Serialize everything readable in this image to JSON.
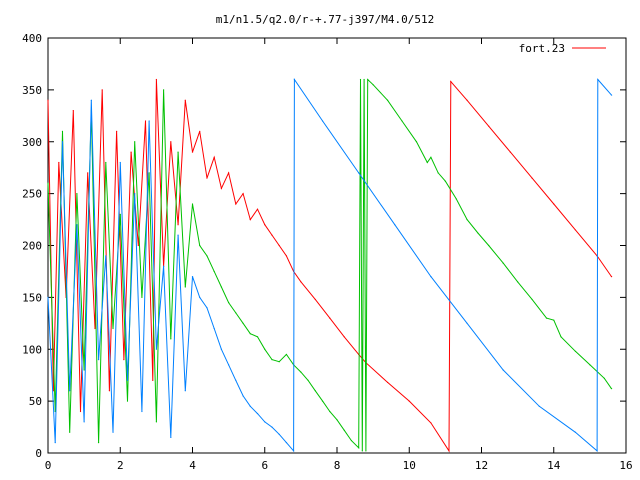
{
  "chart_data": {
    "type": "line",
    "title": "m1/n1.5/q2.0/r-+.77-j397/M4.0/512",
    "xlabel": "",
    "ylabel": "",
    "xlim": [
      0,
      16
    ],
    "ylim": [
      0,
      400
    ],
    "xticks": [
      0,
      2,
      4,
      6,
      8,
      10,
      12,
      14,
      16
    ],
    "yticks": [
      0,
      50,
      100,
      150,
      200,
      250,
      300,
      350,
      400
    ],
    "xtick_labels": [
      "0",
      "2",
      "4",
      "6",
      "8",
      "10",
      "12",
      "14",
      "16"
    ],
    "ytick_labels": [
      "0",
      "50",
      "100",
      "150",
      "200",
      "250",
      "300",
      "350",
      "400"
    ],
    "legend": {
      "placement": "top-right",
      "entries": [
        "fort.23"
      ]
    },
    "grid": false,
    "series": [
      {
        "name": "fort.23",
        "color": "#ff0000",
        "x": [
          0,
          0.15,
          0.3,
          0.5,
          0.7,
          0.9,
          1.1,
          1.3,
          1.5,
          1.7,
          1.9,
          2.1,
          2.3,
          2.5,
          2.7,
          2.9,
          3.0,
          3.2,
          3.4,
          3.6,
          3.8,
          4.0,
          4.2,
          4.4,
          4.6,
          4.8,
          5.0,
          5.2,
          5.4,
          5.6,
          5.8,
          6.0,
          6.2,
          6.4,
          6.6,
          6.8,
          7.0,
          7.4,
          7.8,
          8.2,
          8.6,
          8.8,
          9.4,
          10.0,
          10.6,
          11.1,
          11.15,
          11.6,
          12.2,
          12.8,
          13.4,
          14.0,
          14.6,
          15.2,
          15.6
        ],
        "y": [
          340,
          60,
          280,
          150,
          330,
          40,
          270,
          120,
          350,
          60,
          310,
          90,
          290,
          200,
          320,
          70,
          360,
          180,
          300,
          220,
          340,
          290,
          310,
          265,
          285,
          255,
          270,
          240,
          250,
          225,
          235,
          220,
          210,
          200,
          190,
          175,
          165,
          148,
          130,
          112,
          95,
          87,
          68,
          50,
          29,
          2,
          358,
          340,
          315,
          290,
          265,
          240,
          215,
          190,
          170
        ]
      },
      {
        "color": "#00c000",
        "x": [
          0,
          0.2,
          0.4,
          0.6,
          0.8,
          1.0,
          1.2,
          1.4,
          1.6,
          1.8,
          2.0,
          2.2,
          2.4,
          2.6,
          2.8,
          3.0,
          3.2,
          3.4,
          3.6,
          3.8,
          4.0,
          4.2,
          4.4,
          4.6,
          4.8,
          5.0,
          5.2,
          5.4,
          5.6,
          5.8,
          6.0,
          6.2,
          6.4,
          6.6,
          6.8,
          7.0,
          7.2,
          7.4,
          7.6,
          7.8,
          8.0,
          8.2,
          8.4,
          8.6,
          8.65,
          8.7,
          8.75,
          8.8,
          8.85,
          9.0,
          9.4,
          9.8,
          10.2,
          10.5,
          10.6,
          10.8,
          11.0,
          11.3,
          11.6,
          11.9,
          12.2,
          12.6,
          13.0,
          13.4,
          13.8,
          14.0,
          14.2,
          14.6,
          15.0,
          15.4,
          15.6
        ],
        "y": [
          260,
          40,
          310,
          20,
          250,
          80,
          330,
          10,
          280,
          120,
          230,
          50,
          300,
          150,
          270,
          30,
          350,
          110,
          290,
          160,
          240,
          200,
          190,
          175,
          160,
          145,
          135,
          125,
          115,
          112,
          100,
          90,
          88,
          95,
          85,
          78,
          70,
          60,
          50,
          40,
          32,
          22,
          12,
          5,
          360,
          2,
          360,
          2,
          360,
          355,
          340,
          320,
          300,
          280,
          285,
          270,
          262,
          245,
          225,
          212,
          200,
          183,
          165,
          148,
          130,
          128,
          112,
          98,
          85,
          72,
          62
        ]
      },
      {
        "color": "#0080ff",
        "x": [
          0,
          0.2,
          0.4,
          0.6,
          0.8,
          1.0,
          1.2,
          1.4,
          1.6,
          1.8,
          2.0,
          2.2,
          2.4,
          2.6,
          2.8,
          3.0,
          3.2,
          3.4,
          3.6,
          3.8,
          4.0,
          4.2,
          4.4,
          4.6,
          4.8,
          5.0,
          5.2,
          5.4,
          5.6,
          5.8,
          6.0,
          6.2,
          6.4,
          6.6,
          6.8,
          6.82,
          7.6,
          8.6,
          9.6,
          10.6,
          11.6,
          12.6,
          13.6,
          14.6,
          15.2,
          15.22,
          15.6
        ],
        "y": [
          150,
          10,
          300,
          60,
          220,
          30,
          340,
          90,
          190,
          20,
          280,
          70,
          250,
          40,
          320,
          100,
          180,
          15,
          210,
          60,
          170,
          150,
          140,
          120,
          100,
          85,
          70,
          55,
          45,
          38,
          30,
          25,
          18,
          10,
          2,
          360,
          320,
          270,
          220,
          170,
          125,
          80,
          45,
          20,
          2,
          360,
          345
        ]
      }
    ]
  }
}
